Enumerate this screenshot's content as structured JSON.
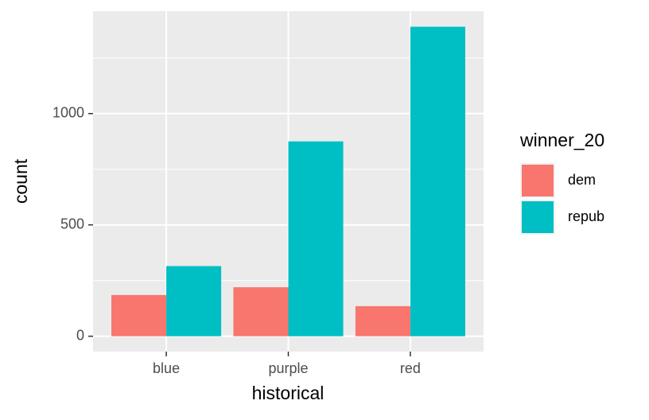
{
  "chart_data": {
    "type": "grouped_bar",
    "x_label": "historical",
    "y_label": "count",
    "categories": [
      "blue",
      "purple",
      "red"
    ],
    "series": [
      {
        "name": "dem",
        "color": "#f8766d",
        "values": [
          185,
          220,
          135
        ]
      },
      {
        "name": "repub",
        "color": "#00bfc4",
        "values": [
          315,
          875,
          1390
        ]
      }
    ],
    "legend_title": "winner_20",
    "legend_position": "right",
    "ylim": [
      -69,
      1460
    ],
    "yticks": [
      0,
      500,
      1000
    ],
    "grid": true,
    "minor_grid": true
  }
}
